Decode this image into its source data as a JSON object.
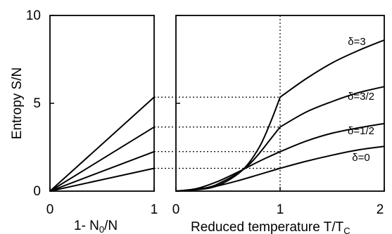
{
  "chart_data": [
    {
      "type": "line",
      "xlabel": "1- N",
      "xlabel_sub": "0",
      "xlabel_tail": "/N",
      "ylabel": "Entropy S/N",
      "xlim": [
        0,
        1
      ],
      "ylim": [
        0,
        10
      ],
      "xticks": [
        "0",
        "1"
      ],
      "yticks": [
        "0",
        "5",
        "10"
      ],
      "series": [
        {
          "values": [
            [
              0,
              0
            ],
            [
              1,
              5.35
            ]
          ]
        },
        {
          "values": [
            [
              0,
              0
            ],
            [
              1,
              3.65
            ]
          ]
        },
        {
          "values": [
            [
              0,
              0
            ],
            [
              1,
              2.25
            ]
          ]
        },
        {
          "values": [
            [
              0,
              0
            ],
            [
              1,
              1.3
            ]
          ]
        }
      ]
    },
    {
      "type": "line",
      "xlabel": "Reduced temperature T/T",
      "xlabel_sub": "C",
      "xlim": [
        0,
        2
      ],
      "ylim": [
        0,
        10
      ],
      "xticks": [
        "0",
        "1",
        "2"
      ],
      "reference_x": 1,
      "reference_y": [
        5.35,
        3.65,
        2.25,
        1.3
      ],
      "series": [
        {
          "name": "δ=3",
          "x": [
            0,
            0.3,
            0.45,
            0.6,
            0.7,
            0.8,
            0.85,
            0.9,
            0.95,
            1.0,
            1.25,
            1.5,
            1.75,
            2.0
          ],
          "y": [
            0,
            0.15,
            0.45,
            1.0,
            1.6,
            2.5,
            3.1,
            3.8,
            4.55,
            5.35,
            6.4,
            7.3,
            8.0,
            8.6
          ]
        },
        {
          "name": "δ=3/2",
          "x": [
            0,
            0.3,
            0.45,
            0.6,
            0.7,
            0.8,
            0.9,
            1.0,
            1.25,
            1.5,
            1.75,
            2.0
          ],
          "y": [
            0,
            0.2,
            0.55,
            1.05,
            1.5,
            2.15,
            2.9,
            3.65,
            4.5,
            5.1,
            5.6,
            5.95
          ]
        },
        {
          "name": "δ=1/2",
          "x": [
            0,
            0.2,
            0.4,
            0.6,
            0.8,
            1.0,
            1.25,
            1.5,
            1.75,
            2.0
          ],
          "y": [
            0,
            0.15,
            0.55,
            1.1,
            1.7,
            2.25,
            2.85,
            3.3,
            3.6,
            3.85
          ]
        },
        {
          "name": "δ=0",
          "x": [
            0,
            0.2,
            0.4,
            0.6,
            0.8,
            1.0,
            1.25,
            1.5,
            1.75,
            2.0
          ],
          "y": [
            0,
            0.1,
            0.3,
            0.6,
            0.95,
            1.3,
            1.7,
            2.05,
            2.35,
            2.55
          ]
        }
      ]
    }
  ]
}
